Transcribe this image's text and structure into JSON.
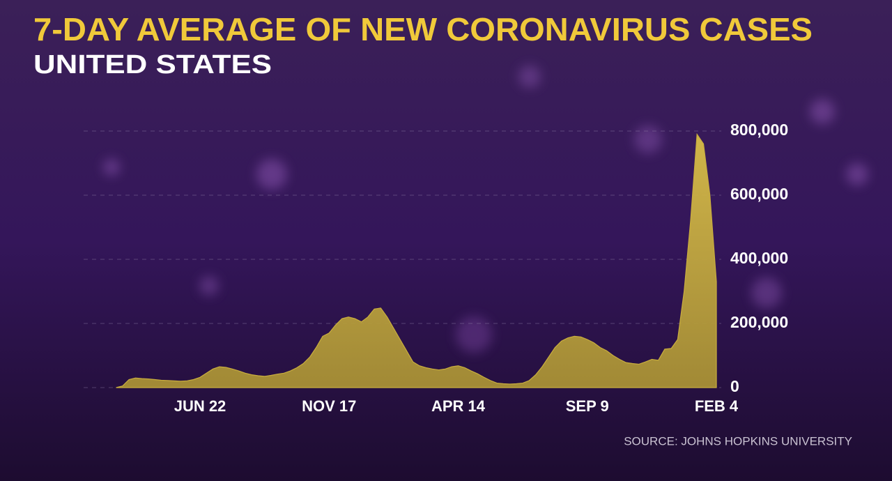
{
  "chart_data": {
    "type": "area",
    "title": "7-DAY AVERAGE OF NEW CORONAVIRUS CASES",
    "subtitle": "UNITED STATES",
    "source": "SOURCE: JOHNS HOPKINS UNIVERSITY",
    "color": "#c9ae3e",
    "categories": [
      null,
      null,
      null,
      null,
      null,
      null,
      null,
      null,
      null,
      null,
      null,
      null,
      null,
      "JUN 22",
      null,
      null,
      null,
      null,
      null,
      null,
      null,
      null,
      null,
      null,
      null,
      null,
      null,
      null,
      null,
      null,
      null,
      null,
      null,
      "NOV 17",
      null,
      null,
      null,
      null,
      null,
      null,
      null,
      null,
      null,
      null,
      null,
      null,
      null,
      null,
      null,
      null,
      null,
      null,
      null,
      "APR 14",
      null,
      null,
      null,
      null,
      null,
      null,
      null,
      null,
      null,
      null,
      null,
      null,
      null,
      null,
      null,
      null,
      null,
      null,
      null,
      "SEP 9",
      null,
      null,
      null,
      null,
      null,
      null,
      null,
      null,
      null,
      null,
      null,
      null,
      null,
      null,
      null,
      null,
      null,
      null,
      null,
      "FEB 4"
    ],
    "values": [
      0,
      5000,
      25000,
      30000,
      28000,
      27000,
      25000,
      23000,
      22000,
      21000,
      20000,
      21000,
      25000,
      32000,
      45000,
      58000,
      65000,
      63000,
      58000,
      52000,
      45000,
      40000,
      37000,
      35000,
      38000,
      42000,
      45000,
      52000,
      62000,
      75000,
      95000,
      125000,
      160000,
      170000,
      195000,
      215000,
      220000,
      215000,
      205000,
      220000,
      245000,
      248000,
      220000,
      185000,
      150000,
      115000,
      80000,
      68000,
      62000,
      58000,
      55000,
      58000,
      65000,
      68000,
      62000,
      52000,
      43000,
      32000,
      22000,
      14000,
      12000,
      11000,
      12000,
      14000,
      22000,
      40000,
      65000,
      95000,
      125000,
      145000,
      155000,
      160000,
      158000,
      150000,
      140000,
      125000,
      115000,
      100000,
      88000,
      78000,
      75000,
      73000,
      80000,
      88000,
      85000,
      120000,
      122000,
      150000,
      300000,
      520000,
      790000,
      760000,
      600000,
      330000
    ],
    "ylim": [
      0,
      800000
    ],
    "yticks": [
      0,
      {
        "value": 200000,
        "label": "200,000"
      },
      {
        "value": 400000,
        "label": "400,000"
      },
      {
        "value": 600000,
        "label": "600,000"
      },
      {
        "value": 800000,
        "label": "800,000"
      }
    ],
    "grid": true
  }
}
